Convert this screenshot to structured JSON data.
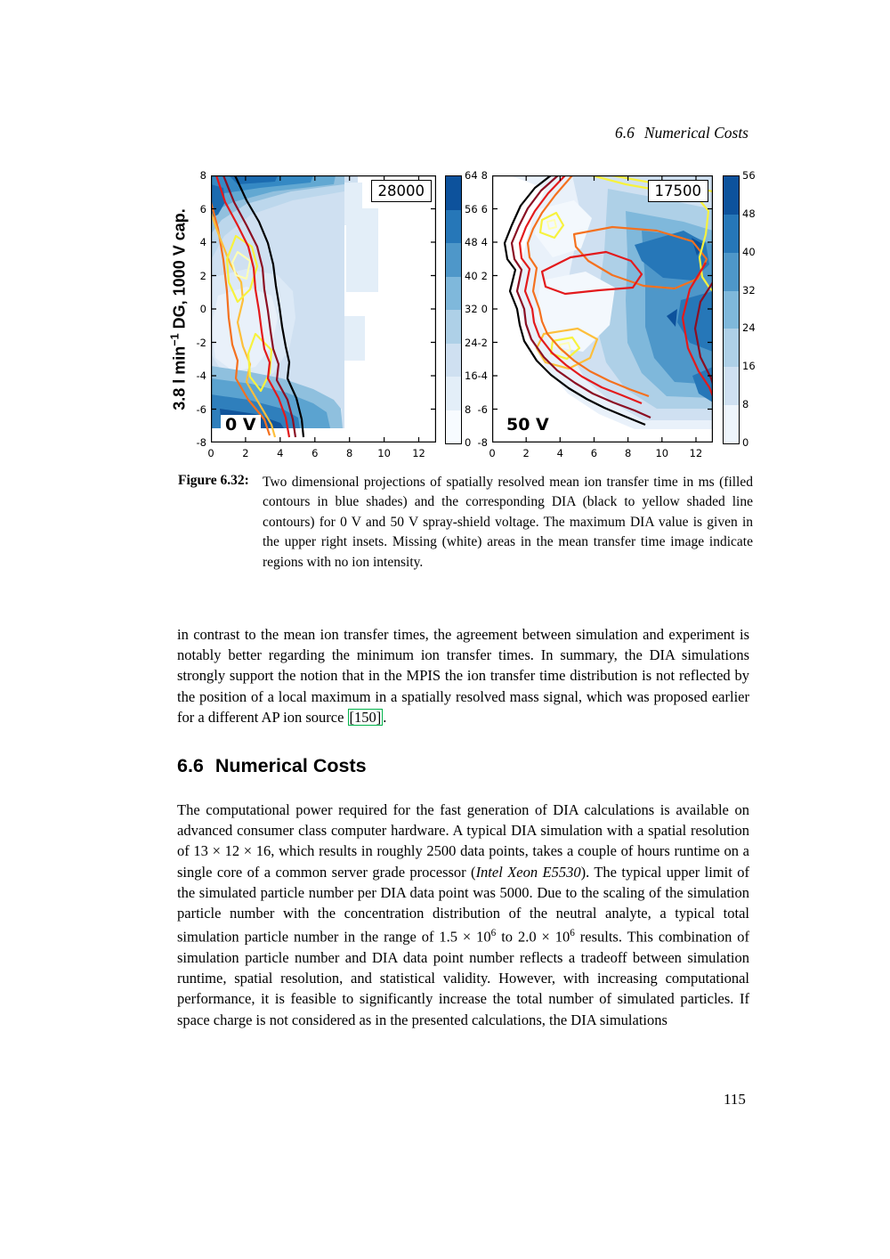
{
  "header": {
    "number": "6.6",
    "title": "Numerical Costs"
  },
  "figure": {
    "ylabel_segments": [
      {
        "t": "3.8 l min"
      },
      {
        "t": "−1",
        "s": "sup"
      },
      {
        "t": " DG, 1000 V cap."
      }
    ],
    "left_plot": {
      "inset_max_dia": "28000",
      "corner_label": "0 V",
      "x_ticks": [
        "0",
        "2",
        "4",
        "6",
        "8",
        "10",
        "12"
      ],
      "y_ticks": [
        "8",
        "6",
        "4",
        "2",
        "0",
        "-2",
        "-4",
        "-6",
        "-8"
      ],
      "colorbar_ticks": [
        "64",
        "56",
        "48",
        "40",
        "32",
        "24",
        "16",
        "8",
        "0"
      ]
    },
    "right_plot": {
      "inset_max_dia": "17500",
      "corner_label": "50 V",
      "x_ticks": [
        "0",
        "2",
        "4",
        "6",
        "8",
        "10",
        "12"
      ],
      "y_ticks": [
        "8",
        "6",
        "4",
        "2",
        "0",
        "-2",
        "-4",
        "-6",
        "-8"
      ],
      "colorbar_ticks": [
        "56",
        "48",
        "40",
        "32",
        "24",
        "16",
        "8",
        "0"
      ]
    },
    "colors": {
      "blue_fill_palette": [
        "#f7fbff",
        "#e3eef8",
        "#cfe0f1",
        "#aed0e7",
        "#7fb8db",
        "#4e97c9",
        "#2677b8",
        "#0d529c"
      ],
      "dia_line_palette": [
        "#000000",
        "#8b0f23",
        "#e31a1c",
        "#f4711f",
        "#fdbf3b",
        "#f7f23e",
        "#ffffb2"
      ]
    }
  },
  "chart_data": [
    {
      "type": "heatmap",
      "title": "0 V spray-shield voltage panel",
      "xlim": [
        0,
        13
      ],
      "ylim": [
        -8,
        8
      ],
      "colorbar_range": [
        0,
        64
      ],
      "colorbar_step": 8,
      "max_dia": 28000,
      "note": "mean ion transfer time in ms as filled blue contours; DIA as black-to-yellow line contours; white = no ion intensity"
    },
    {
      "type": "heatmap",
      "title": "50 V spray-shield voltage panel",
      "xlim": [
        0,
        13
      ],
      "ylim": [
        -8,
        8
      ],
      "colorbar_range": [
        0,
        56
      ],
      "colorbar_step": 8,
      "max_dia": 17500,
      "note": "mean ion transfer time in ms as filled blue contours; DIA as black-to-yellow line contours; white = no ion intensity"
    }
  ],
  "caption": {
    "label": "Figure 6.32:",
    "text": "Two dimensional projections of spatially resolved mean ion transfer time in ms (filled contours in blue shades) and the corresponding DIA (black to yellow shaded line contours) for 0 V and 50 V spray-shield voltage. The maximum DIA value is given in the upper right insets. Missing (white) areas in the mean transfer time image indicate regions with no ion intensity."
  },
  "paragraph1_segments": [
    {
      "t": "in contrast to the mean ion transfer times, the agreement between simulation and experiment is notably better regarding the minimum ion transfer times. In summary, the DIA simulations strongly support the notion that in the MPIS the ion transfer time distribution is not reflected by the position of a local maximum in a spatially resolved mass signal, which was proposed earlier for a different AP ion source "
    },
    {
      "t": "[150]",
      "s": "cite"
    },
    {
      "t": "."
    }
  ],
  "section": {
    "number": "6.6",
    "title": "Numerical Costs"
  },
  "paragraph2_segments": [
    {
      "t": "The computational power required for the fast generation of DIA calculations is available on advanced consumer class computer hardware. A typical DIA simulation with a spatial resolution of 13 × 12 × 16, which results in roughly 2500 data points, takes a couple of hours runtime on a single core of a common server grade processor ("
    },
    {
      "t": "Intel Xeon E5530",
      "s": "i"
    },
    {
      "t": "). The typical upper limit of the simulated particle number per DIA data point was 5000. Due to the scaling of the simulation particle number with the concentration distribution of the neutral analyte, a typical total simulation particle number in the range of 1.5 × 10"
    },
    {
      "t": "6",
      "s": "sup"
    },
    {
      "t": " to 2.0 × 10"
    },
    {
      "t": "6",
      "s": "sup"
    },
    {
      "t": " results. This combination of simulation particle number and DIA data point number reflects a tradeoff between simulation runtime, spatial resolution, and statistical validity. However, with increasing computational performance, it is feasible to significantly increase the total number of simulated particles. If space charge is not considered as in the presented calculations, the DIA simulations"
    }
  ],
  "page_number": "115"
}
